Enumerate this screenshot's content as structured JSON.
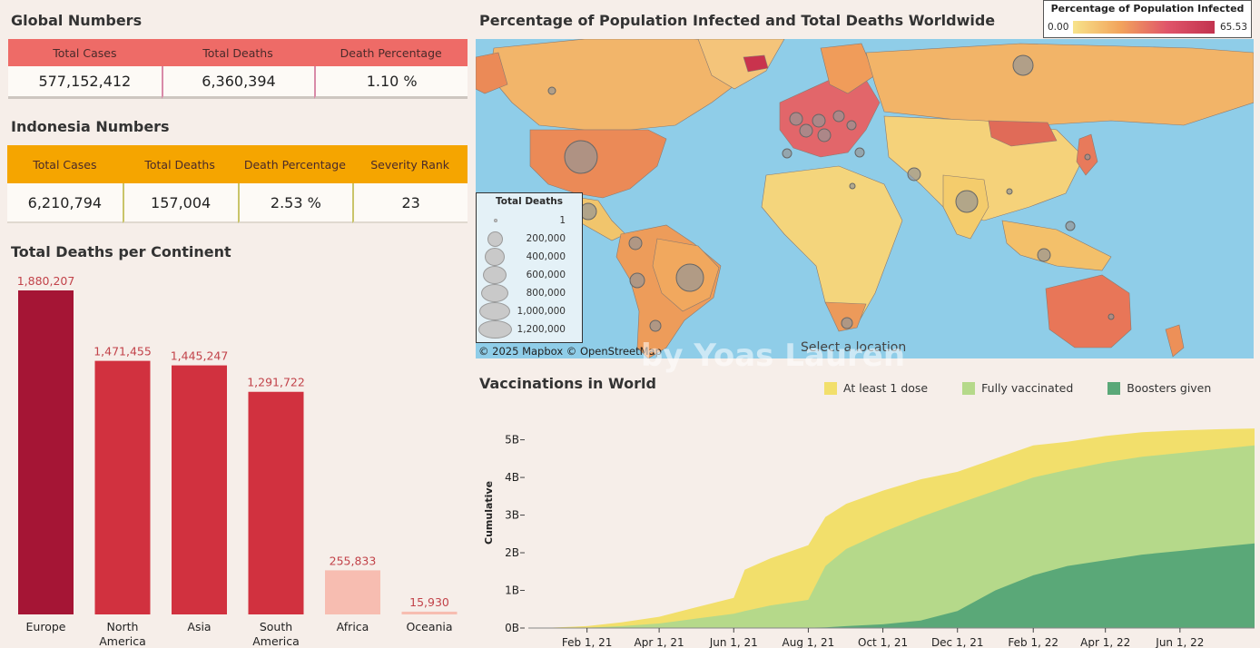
{
  "global": {
    "title": "Global Numbers",
    "headers": [
      "Total Cases",
      "Total Deaths",
      "Death Percentage"
    ],
    "values": [
      "577,152,412",
      "6,360,394",
      "1.10 %"
    ]
  },
  "indonesia": {
    "title": "Indonesia Numbers",
    "headers": [
      "Total Cases",
      "Total Deaths",
      "Death Percentage",
      "Severity Rank"
    ],
    "values": [
      "6,210,794",
      "157,004",
      "2.53 %",
      "23"
    ]
  },
  "map": {
    "title": "Percentage of Population Infected and Total Deaths Worldwide",
    "legend_title": "Percentage of Population Infected",
    "legend_min": "0.00",
    "legend_max": "65.53",
    "deaths_legend_title": "Total Deaths",
    "deaths_legend": [
      "1",
      "200,000",
      "400,000",
      "600,000",
      "800,000",
      "1,000,000",
      "1,200,000"
    ],
    "attribution": "© 2025 Mapbox  © OpenStreetMap",
    "select_hint": "Select a location",
    "watermark": "by Yoas Lauren",
    "colors": {
      "ocean": "#8fcde8",
      "low": "#f7e38a",
      "mid": "#f2a45c",
      "high": "#e0556a",
      "max": "#c2334f"
    }
  },
  "chart_data": [
    {
      "type": "bar",
      "title": "Total Deaths per Continent",
      "categories": [
        "Europe",
        "North America",
        "Asia",
        "South America",
        "Africa",
        "Oceania"
      ],
      "values": [
        1880207,
        1471455,
        1445247,
        1291722,
        255833,
        15930
      ],
      "value_labels": [
        "1,880,207",
        "1,471,455",
        "1,445,247",
        "1,291,722",
        "255,833",
        "15,930"
      ],
      "colors": [
        "#a51535",
        "#d1313f",
        "#d1313f",
        "#d1313f",
        "#f7bdb1",
        "#f7bdb1"
      ],
      "ylim": [
        0,
        1880207
      ],
      "grid": false
    },
    {
      "type": "area",
      "title": "Vaccinations in World",
      "ylabel": "Cumulative",
      "x_ticks": [
        "Feb 1, 21",
        "Apr 1, 21",
        "Jun 1, 21",
        "Aug 1, 21",
        "Oct 1, 21",
        "Dec 1, 21",
        "Feb 1, 22",
        "Apr 1, 22",
        "Jun 1, 22"
      ],
      "y_ticks": [
        "0B",
        "1B",
        "2B",
        "3B",
        "4B",
        "5B"
      ],
      "ylim": [
        0,
        5.4
      ],
      "legend_placement": "top",
      "x": [
        "2020-12-15",
        "2021-01-01",
        "2021-02-01",
        "2021-03-01",
        "2021-04-01",
        "2021-05-01",
        "2021-06-01",
        "2021-06-10",
        "2021-07-01",
        "2021-08-01",
        "2021-08-15",
        "2021-09-01",
        "2021-10-01",
        "2021-11-01",
        "2021-12-01",
        "2022-01-01",
        "2022-02-01",
        "2022-03-01",
        "2022-04-01",
        "2022-05-01",
        "2022-06-01",
        "2022-07-01",
        "2022-08-01"
      ],
      "series": [
        {
          "name": "At least 1 dose",
          "color": "#f2df6b",
          "values": [
            0,
            0.01,
            0.05,
            0.15,
            0.3,
            0.55,
            0.8,
            1.55,
            1.85,
            2.2,
            2.95,
            3.3,
            3.65,
            3.95,
            4.15,
            4.5,
            4.85,
            4.95,
            5.1,
            5.2,
            5.25,
            5.28,
            5.3
          ]
        },
        {
          "name": "Fully vaccinated",
          "color": "#b5d98a",
          "values": [
            0,
            0,
            0.01,
            0.05,
            0.12,
            0.25,
            0.38,
            0.45,
            0.6,
            0.75,
            1.65,
            2.1,
            2.55,
            2.95,
            3.3,
            3.65,
            4.0,
            4.2,
            4.4,
            4.55,
            4.65,
            4.75,
            4.85
          ]
        },
        {
          "name": "Boosters given",
          "color": "#5aa878",
          "values": [
            0,
            0,
            0,
            0,
            0,
            0,
            0,
            0,
            0,
            0.01,
            0.02,
            0.05,
            0.1,
            0.2,
            0.45,
            1.0,
            1.4,
            1.65,
            1.8,
            1.95,
            2.05,
            2.15,
            2.25
          ]
        }
      ]
    }
  ]
}
